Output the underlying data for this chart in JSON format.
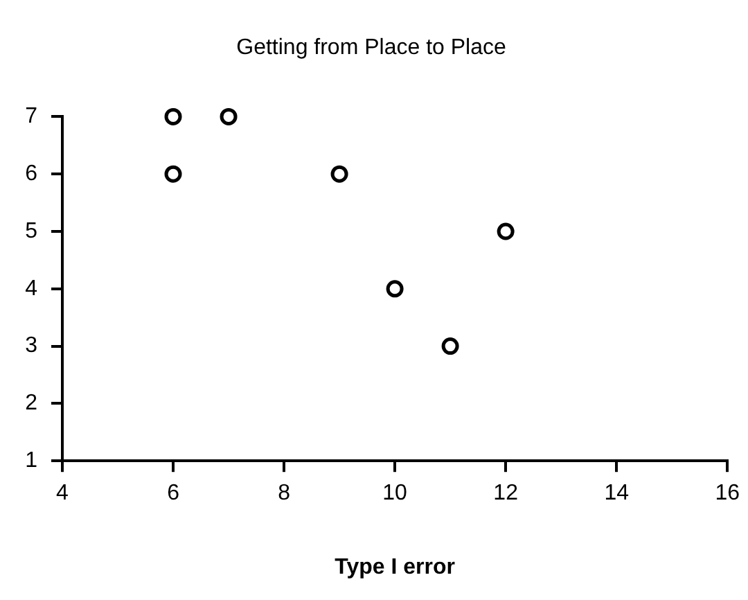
{
  "chart_data": {
    "type": "scatter",
    "title": "Getting from Place to Place",
    "xlabel": "Type I error",
    "x": [
      6,
      7,
      6,
      9,
      12,
      10,
      11
    ],
    "series": [
      {
        "color": "#000000",
        "values": [
          7,
          7,
          6,
          6,
          5,
          4,
          3
        ]
      }
    ],
    "xlim": [
      4,
      16
    ],
    "xticks": [
      4,
      6,
      8,
      10,
      12,
      14,
      16
    ],
    "ylim": [
      1,
      7
    ],
    "yticks": [
      1,
      2,
      3,
      4,
      5,
      6,
      7
    ],
    "marker": "circle",
    "grid": false,
    "legend": false
  }
}
